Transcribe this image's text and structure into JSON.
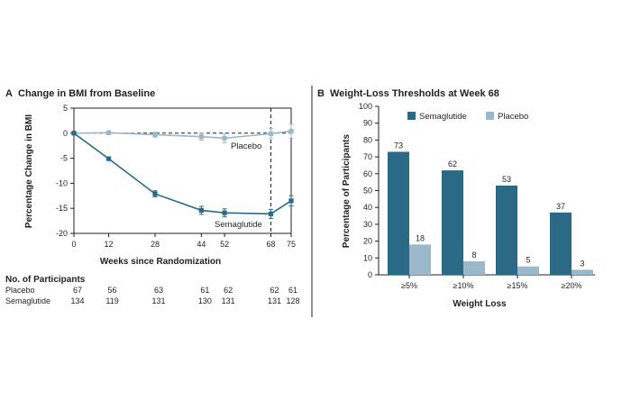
{
  "panels": {
    "a": {
      "letter": "A",
      "title": "Change in BMI from Baseline"
    },
    "b": {
      "letter": "B",
      "title": "Weight-Loss Thresholds at Week 68"
    }
  },
  "participants": {
    "heading": "No. of Participants",
    "weeks": [
      0,
      12,
      28,
      44,
      52,
      68,
      75
    ],
    "rows": [
      {
        "label": "Placebo",
        "counts": [
          67,
          56,
          63,
          61,
          62,
          62,
          61
        ]
      },
      {
        "label": "Semaglutide",
        "counts": [
          134,
          119,
          131,
          130,
          131,
          131,
          128
        ]
      }
    ]
  },
  "colors": {
    "semaglutide": "#2a6a86",
    "placebo": "#9ab8c9",
    "axis": "#231f20"
  },
  "chart_data": [
    {
      "type": "line",
      "title": "Change in BMI from Baseline",
      "xlabel": "Weeks since Randomization",
      "ylabel": "Percentage Change in BMI",
      "x": [
        0,
        12,
        28,
        44,
        52,
        68,
        75
      ],
      "xlim": [
        0,
        75
      ],
      "ylim": [
        -20,
        5
      ],
      "yticks": [
        5,
        0,
        -5,
        -10,
        -15,
        -20
      ],
      "reference_line_y": 0,
      "reference_line_x": 68,
      "series": [
        {
          "name": "Semaglutide",
          "values": [
            0,
            -5.1,
            -12.1,
            -15.4,
            -15.9,
            -16.1,
            -13.5
          ],
          "error": [
            0,
            0.3,
            0.6,
            0.8,
            0.8,
            0.9,
            1.0
          ]
        },
        {
          "name": "Placebo",
          "values": [
            0,
            0.1,
            -0.3,
            -0.7,
            -1.0,
            -0.1,
            0.4
          ],
          "error": [
            0,
            0.4,
            0.5,
            0.7,
            0.9,
            1.0,
            1.4
          ]
        }
      ]
    },
    {
      "type": "bar",
      "title": "Weight-Loss Thresholds at Week 68",
      "xlabel": "Weight Loss",
      "ylabel": "Percentage of Participants",
      "categories": [
        "≥5%",
        "≥10%",
        "≥15%",
        "≥20%"
      ],
      "ylim": [
        0,
        100
      ],
      "yticks": [
        0,
        10,
        20,
        30,
        40,
        50,
        60,
        70,
        80,
        90,
        100
      ],
      "legend": "top",
      "series": [
        {
          "name": "Semaglutide",
          "values": [
            73,
            62,
            53,
            37
          ]
        },
        {
          "name": "Placebo",
          "values": [
            18,
            8,
            5,
            3
          ]
        }
      ]
    }
  ]
}
